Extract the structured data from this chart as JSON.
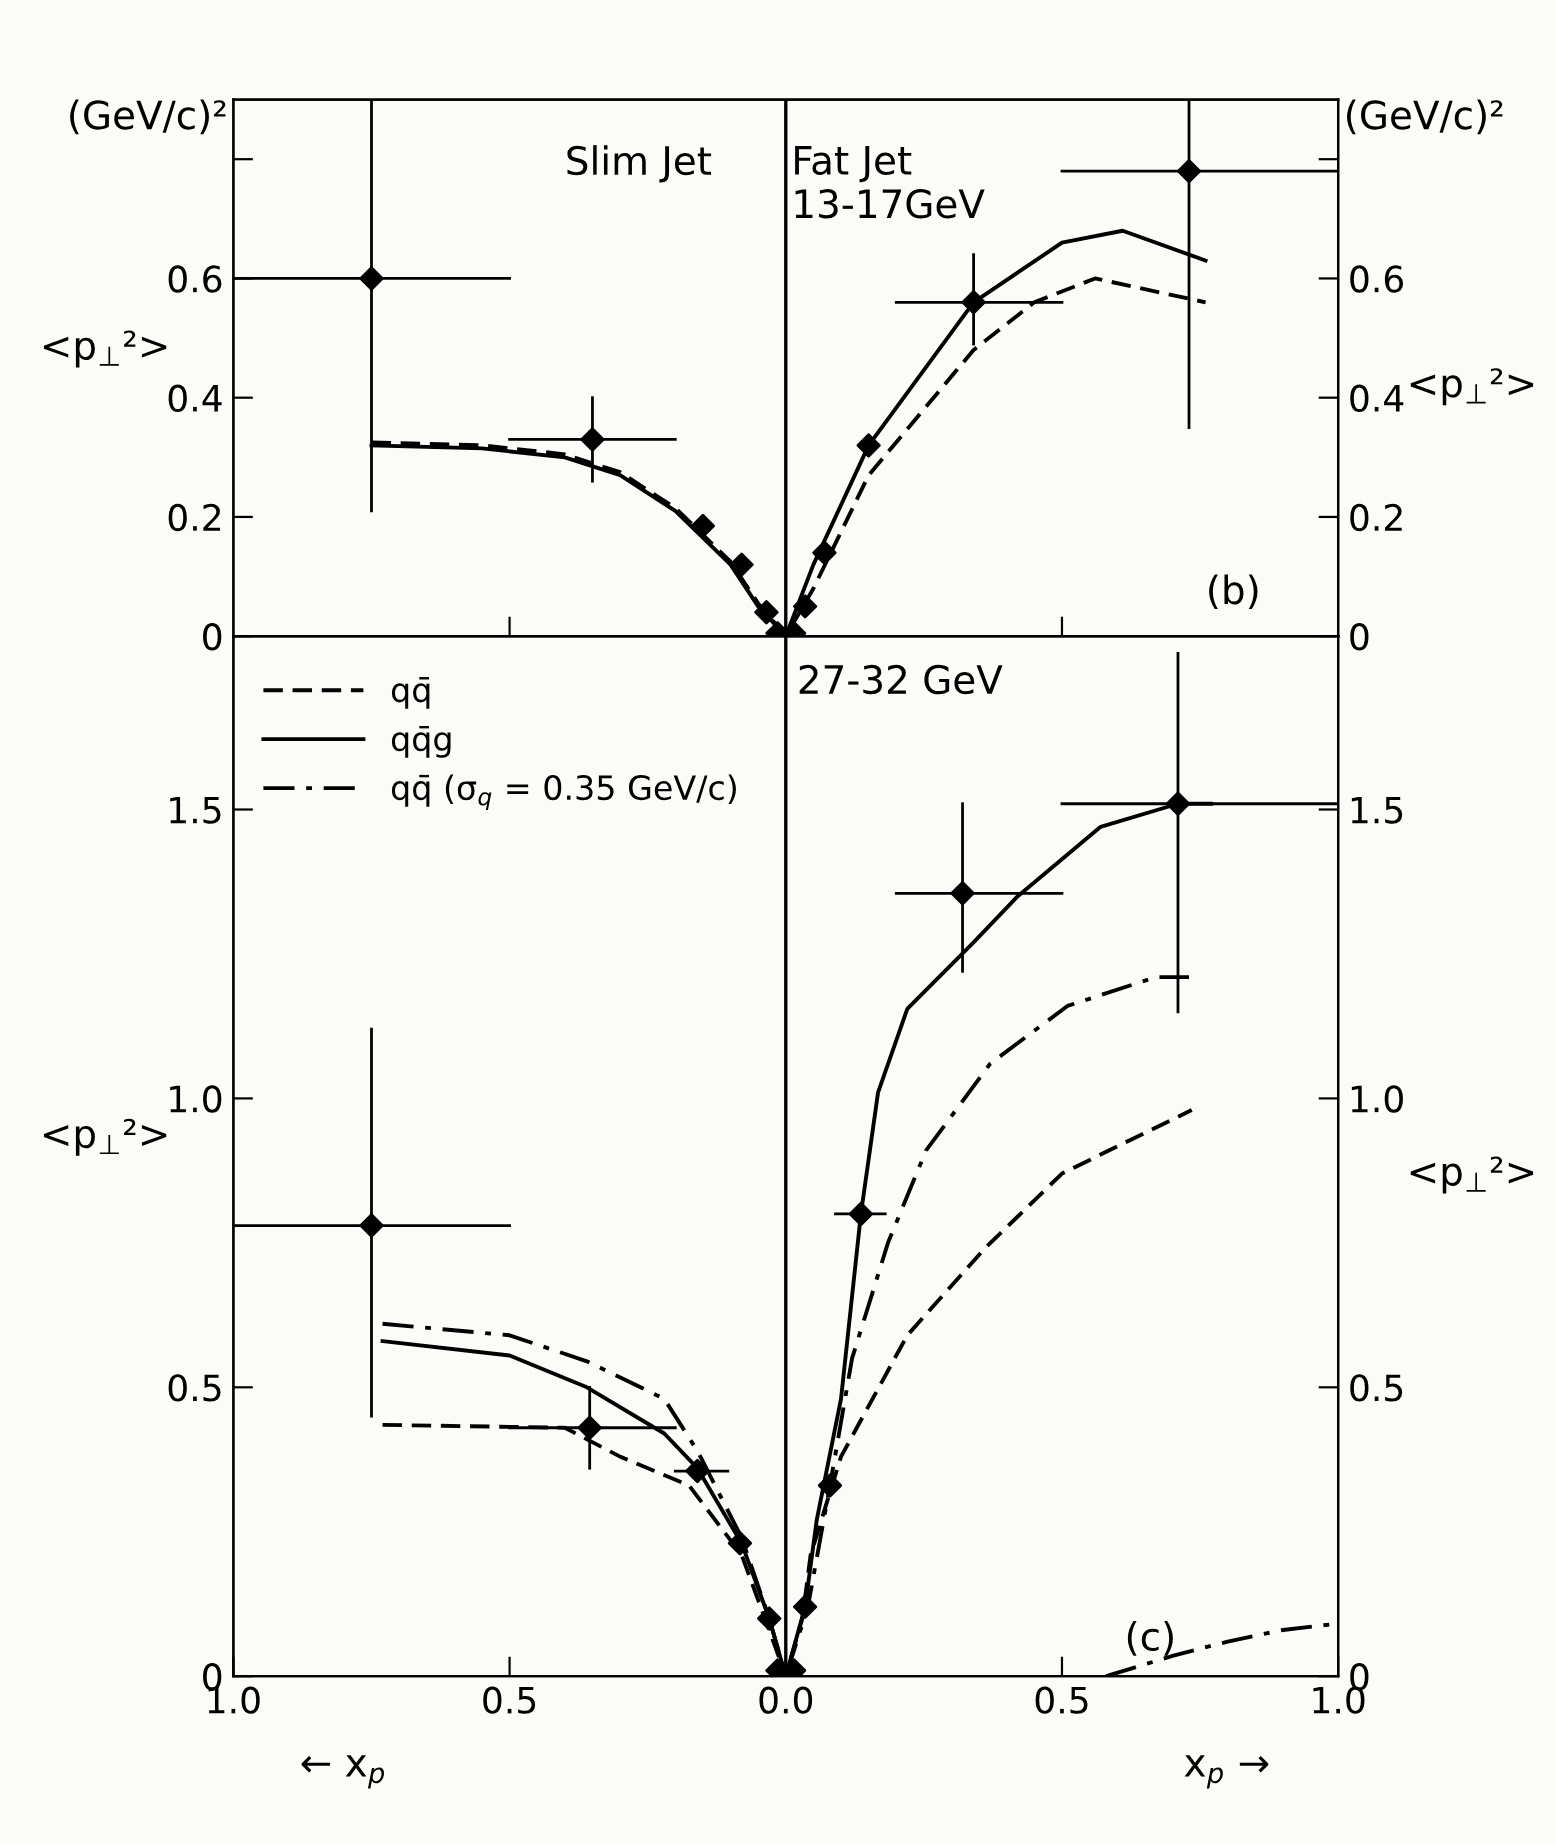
{
  "chart_data": [
    {
      "type": "scatter",
      "xlim": [
        -1,
        1
      ],
      "xticks": [
        {
          "value": -0.5,
          "label": null
        },
        {
          "value": 0.5,
          "label": null
        }
      ],
      "ylim": [
        0,
        0.9
      ],
      "yticks": [
        0,
        0.2,
        0.4,
        0.6,
        {
          "value": 0.8,
          "label": null
        }
      ],
      "y2lim": [
        0,
        0.9
      ],
      "y2ticks": [
        0,
        0.2,
        0.4,
        0.6,
        {
          "value": 0.8,
          "label": null
        }
      ],
      "ylabel": "<p$_{⊥}$²>",
      "y2label": "<p$_{⊥}$²>",
      "tick_labels": "y",
      "annotations": [
        "Slim Jet",
        "Fat Jet\n13-17GeV",
        "(b)",
        "(GeV/c)²",
        "(GeV/c)²"
      ],
      "ref_lines": [
        {
          "axis": "x",
          "value": 0,
          "color": "#000000"
        }
      ],
      "series": [
        {
          "type": "line",
          "color": "#000000",
          "line_style": "solid",
          "marker": "none",
          "x": [
            -0.75,
            -0.55,
            -0.4,
            -0.3,
            -0.2,
            -0.1,
            -0.05,
            0,
            0.05,
            0.15,
            0.34,
            0.5,
            0.61,
            0.76
          ],
          "values": [
            0.32,
            0.315,
            0.3,
            0.27,
            0.21,
            0.12,
            0.05,
            0,
            0.12,
            0.32,
            0.56,
            0.66,
            0.68,
            0.63
          ]
        },
        {
          "type": "line",
          "color": "#000000",
          "line_style": "dashed",
          "marker": "none",
          "x": [
            -0.75,
            -0.55,
            -0.4,
            -0.3,
            -0.2,
            -0.1,
            -0.05,
            0,
            0.05,
            0.15,
            0.34,
            0.45,
            0.56,
            0.76
          ],
          "values": [
            0.325,
            0.32,
            0.305,
            0.275,
            0.215,
            0.125,
            0.055,
            0,
            0.08,
            0.27,
            0.48,
            0.56,
            0.6,
            0.56
          ]
        },
        {
          "color": "#000000",
          "marker": "diamond",
          "x": [
            -0.75,
            -0.35,
            -0.15,
            -0.08,
            -0.035,
            -0.015,
            0.015,
            0.035,
            0.07,
            0.15,
            0.34,
            0.73
          ],
          "values": [
            0.6,
            0.33,
            0.185,
            0.12,
            0.04,
            0.005,
            0.005,
            0.05,
            0.14,
            0.32,
            0.56,
            0.78
          ],
          "errors": [
            [
              0.21,
              0.9
            ],
            [
              0.26,
              0.4
            ],
            null,
            null,
            null,
            null,
            null,
            null,
            null,
            null,
            [
              0.49,
              0.64
            ],
            [
              0.35,
              0.9
            ]
          ],
          "xerrors": [
            [
              -1,
              -0.5
            ],
            [
              -0.5,
              -0.2
            ],
            null,
            null,
            null,
            null,
            null,
            null,
            null,
            null,
            [
              0.2,
              0.5
            ],
            [
              0.5,
              1
            ]
          ]
        }
      ]
    },
    {
      "type": "scatter",
      "xlim": [
        -1,
        1
      ],
      "xticks": [
        {
          "value": -1,
          "label": "1.0"
        },
        {
          "value": -0.5,
          "label": "0.5"
        },
        {
          "value": 0,
          "label": "0.0"
        },
        {
          "value": 0.5,
          "label": "0.5"
        },
        {
          "value": 1,
          "label": "1.0"
        }
      ],
      "ylim": [
        0,
        1.8
      ],
      "yticks": [
        0,
        0.5,
        {
          "value": 1,
          "label": "1.0"
        },
        1.5
      ],
      "y2lim": [
        0,
        1.8
      ],
      "y2ticks": [
        0,
        0.5,
        {
          "value": 1,
          "label": "1.0"
        },
        1.5
      ],
      "ylabel": "<p$_{⊥}$²>",
      "y2label": "<p$_{⊥}$²>",
      "legend": "top left",
      "annotations": [
        "27-32 GeV",
        "(c)",
        "← x$_{p}$",
        "x$_{p}$ →"
      ],
      "ref_lines": [
        {
          "axis": "x",
          "value": 0,
          "color": "#000000"
        }
      ],
      "series": [
        {
          "type": "line",
          "name": "qq̄",
          "color": "#000000",
          "line_style": "dashed",
          "marker": "none",
          "x": [
            -0.73,
            -0.4,
            -0.3,
            -0.175,
            -0.08,
            -0.03,
            0,
            0.03,
            0.045,
            0.1,
            0.22,
            0.36,
            0.5,
            0.735
          ],
          "values": [
            0.435,
            0.43,
            0.38,
            0.33,
            0.21,
            0.08,
            0,
            0.1,
            0.21,
            0.38,
            0.59,
            0.74,
            0.87,
            0.98
          ]
        },
        {
          "type": "line",
          "name": "qq̄g",
          "color": "#000000",
          "line_style": "solid",
          "marker": "none",
          "x": [
            -0.73,
            -0.5,
            -0.36,
            -0.22,
            -0.16,
            -0.08,
            -0.03,
            0,
            0.035,
            0.056,
            0.1,
            0.136,
            0.167,
            0.22,
            0.34,
            0.42,
            0.57,
            0.71,
            0.77
          ],
          "values": [
            0.58,
            0.555,
            0.5,
            0.42,
            0.36,
            0.23,
            0.1,
            0,
            0.12,
            0.27,
            0.48,
            0.8,
            1.01,
            1.155,
            1.27,
            1.35,
            1.47,
            1.51,
            1.51
          ]
        },
        {
          "type": "line",
          "name": "qq̄ (σ$_{q}$ = 0.35 GeV/c)",
          "color": "#000000",
          "line_style": "dashdot",
          "marker": "none",
          "x": [
            -0.73,
            -0.5,
            -0.36,
            -0.22,
            -0.16,
            -0.08,
            -0.03,
            0,
            0.04,
            0.08,
            0.12,
            0.185,
            0.254,
            0.37,
            0.51,
            0.67,
            0.73
          ],
          "values": [
            0.61,
            0.59,
            0.545,
            0.48,
            0.39,
            0.24,
            0.1,
            0,
            0.12,
            0.33,
            0.55,
            0.75,
            0.91,
            1.06,
            1.16,
            1.21,
            1.21
          ]
        },
        {
          "type": "line",
          "color": "#000000",
          "line_style": "dashdot",
          "marker": "none",
          "x": [
            0.58,
            0.7,
            0.8,
            0.9,
            0.99
          ],
          "values": [
            0,
            0.035,
            0.06,
            0.08,
            0.09
          ]
        },
        {
          "color": "#000000",
          "marker": "diamond",
          "x": [
            -0.75,
            -0.355,
            -0.16,
            -0.083,
            -0.03,
            -0.015,
            0.015,
            0.035,
            0.08,
            0.136,
            0.32,
            0.71
          ],
          "values": [
            0.78,
            0.43,
            0.355,
            0.23,
            0.1,
            0.01,
            0.01,
            0.12,
            0.33,
            0.8,
            1.355,
            1.51
          ],
          "errors": [
            [
              0.45,
              1.12
            ],
            [
              0.36,
              0.5
            ],
            null,
            null,
            null,
            null,
            null,
            null,
            null,
            null,
            [
              1.22,
              1.51
            ],
            [
              1.15,
              1.77
            ]
          ],
          "xerrors": [
            [
              -1,
              -0.5
            ],
            [
              -0.5,
              -0.2
            ],
            [
              -0.2,
              -0.105
            ],
            null,
            null,
            null,
            null,
            null,
            null,
            [
              0.09,
              0.18
            ],
            [
              0.2,
              0.5
            ],
            [
              0.5,
              1
            ]
          ]
        }
      ]
    }
  ]
}
